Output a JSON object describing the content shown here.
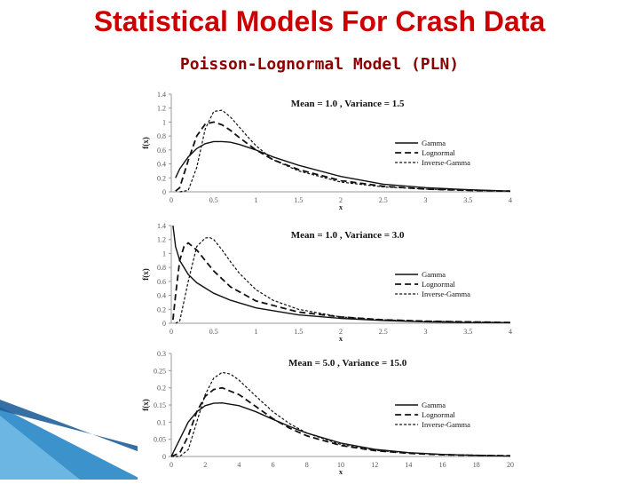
{
  "page": {
    "title": "Statistical Models For Crash Data",
    "subtitle": "Poisson-Lognormal Model (PLN)"
  },
  "colors": {
    "title": "#cc0000",
    "subtitle": "#8b0000",
    "decor": "#1a7fc1"
  },
  "chart_data": [
    {
      "type": "line",
      "title": "Mean = 1.0 , Variance = 1.5",
      "xlabel": "x",
      "ylabel": "f(x)",
      "xlim": [
        0,
        4
      ],
      "ylim": [
        0,
        1.4
      ],
      "xticks": [
        "0",
        "0.5",
        "1",
        "1.5",
        "2",
        "2.5",
        "3",
        "3.5",
        "4"
      ],
      "yticks": [
        "0",
        "0.2",
        "0.4",
        "0.6",
        "0.8",
        "1",
        "1.2",
        "1.4"
      ],
      "legend": "right",
      "series": [
        {
          "name": "Gamma",
          "style": "solid",
          "x": [
            0.05,
            0.1,
            0.2,
            0.3,
            0.4,
            0.5,
            0.6,
            0.7,
            0.8,
            1.0,
            1.2,
            1.5,
            2.0,
            2.5,
            3.0,
            3.5,
            4.0
          ],
          "values": [
            0.2,
            0.33,
            0.5,
            0.62,
            0.69,
            0.72,
            0.72,
            0.71,
            0.68,
            0.6,
            0.5,
            0.38,
            0.22,
            0.11,
            0.06,
            0.03,
            0.01
          ]
        },
        {
          "name": "Lognormal",
          "style": "dashed",
          "x": [
            0.05,
            0.1,
            0.2,
            0.3,
            0.4,
            0.5,
            0.6,
            0.7,
            0.8,
            1.0,
            1.2,
            1.5,
            2.0,
            2.5,
            3.0,
            3.5,
            4.0
          ],
          "values": [
            0.01,
            0.06,
            0.45,
            0.8,
            0.97,
            1.0,
            0.96,
            0.88,
            0.78,
            0.6,
            0.46,
            0.32,
            0.16,
            0.08,
            0.04,
            0.02,
            0.01
          ]
        },
        {
          "name": "Inverse-Gamma",
          "style": "dotted",
          "x": [
            0.1,
            0.2,
            0.3,
            0.4,
            0.5,
            0.6,
            0.7,
            0.8,
            0.9,
            1.0,
            1.2,
            1.5,
            2.0,
            2.5,
            3.0,
            3.5,
            4.0
          ],
          "values": [
            0.0,
            0.02,
            0.35,
            0.9,
            1.15,
            1.17,
            1.07,
            0.93,
            0.79,
            0.66,
            0.46,
            0.3,
            0.14,
            0.07,
            0.04,
            0.02,
            0.01
          ]
        }
      ]
    },
    {
      "type": "line",
      "title": "Mean = 1.0 , Variance = 3.0",
      "xlabel": "x",
      "ylabel": "f(x)",
      "xlim": [
        0,
        4
      ],
      "ylim": [
        0,
        1.4
      ],
      "xticks": [
        "0",
        "0.5",
        "1",
        "1.5",
        "2",
        "2.5",
        "3",
        "3.5",
        "4"
      ],
      "yticks": [
        "0",
        "0.2",
        "0.4",
        "0.6",
        "0.8",
        "1",
        "1.2",
        "1.4"
      ],
      "legend": "right",
      "series": [
        {
          "name": "Gamma",
          "style": "solid",
          "x": [
            0.02,
            0.05,
            0.1,
            0.2,
            0.3,
            0.5,
            0.7,
            1.0,
            1.5,
            2.0,
            2.5,
            3.0,
            3.5,
            4.0
          ],
          "values": [
            1.4,
            1.1,
            0.9,
            0.7,
            0.58,
            0.43,
            0.33,
            0.22,
            0.12,
            0.07,
            0.04,
            0.02,
            0.01,
            0.01
          ]
        },
        {
          "name": "Lognormal",
          "style": "dashed",
          "x": [
            0.02,
            0.05,
            0.1,
            0.15,
            0.2,
            0.3,
            0.4,
            0.5,
            0.7,
            1.0,
            1.5,
            2.0,
            2.5,
            3.0,
            3.5,
            4.0
          ],
          "values": [
            0.05,
            0.4,
            0.9,
            1.1,
            1.15,
            1.05,
            0.9,
            0.75,
            0.52,
            0.32,
            0.16,
            0.09,
            0.05,
            0.03,
            0.02,
            0.01
          ]
        },
        {
          "name": "Inverse-Gamma",
          "style": "dotted",
          "x": [
            0.05,
            0.1,
            0.2,
            0.3,
            0.4,
            0.45,
            0.5,
            0.6,
            0.7,
            0.8,
            1.0,
            1.2,
            1.5,
            2.0,
            2.5,
            3.0,
            3.5,
            4.0
          ],
          "values": [
            0.0,
            0.03,
            0.6,
            1.1,
            1.22,
            1.23,
            1.2,
            1.05,
            0.88,
            0.72,
            0.48,
            0.33,
            0.2,
            0.09,
            0.05,
            0.03,
            0.02,
            0.01
          ]
        }
      ]
    },
    {
      "type": "line",
      "title": "Mean = 5.0 , Variance = 15.0",
      "xlabel": "x",
      "ylabel": "f(x)",
      "xlim": [
        0,
        20
      ],
      "ylim": [
        0,
        0.3
      ],
      "xticks": [
        "0",
        "2",
        "4",
        "6",
        "8",
        "10",
        "12",
        "14",
        "16",
        "18",
        "20"
      ],
      "yticks": [
        "0",
        "0.05",
        "0.1",
        "0.15",
        "0.2",
        "0.25",
        "0.3"
      ],
      "legend": "right",
      "series": [
        {
          "name": "Gamma",
          "style": "solid",
          "x": [
            0,
            0.5,
            1,
            1.5,
            2,
            2.5,
            3,
            4,
            5,
            6,
            7,
            8,
            10,
            12,
            14,
            16,
            18,
            20
          ],
          "values": [
            0,
            0.05,
            0.1,
            0.13,
            0.148,
            0.155,
            0.156,
            0.148,
            0.13,
            0.108,
            0.087,
            0.068,
            0.039,
            0.021,
            0.011,
            0.006,
            0.003,
            0.001
          ]
        },
        {
          "name": "Lognormal",
          "style": "dashed",
          "x": [
            0,
            0.5,
            1,
            1.5,
            2,
            2.5,
            3,
            4,
            5,
            6,
            7,
            8,
            10,
            12,
            14,
            16,
            18,
            20
          ],
          "values": [
            0,
            0.01,
            0.06,
            0.13,
            0.175,
            0.195,
            0.2,
            0.18,
            0.145,
            0.11,
            0.082,
            0.06,
            0.032,
            0.017,
            0.009,
            0.005,
            0.003,
            0.002
          ]
        },
        {
          "name": "Inverse-Gamma",
          "style": "dotted",
          "x": [
            0,
            0.5,
            1,
            1.5,
            2,
            2.5,
            3,
            3.5,
            4,
            5,
            6,
            7,
            8,
            10,
            12,
            14,
            16,
            18,
            20
          ],
          "values": [
            0,
            0.0,
            0.02,
            0.1,
            0.18,
            0.228,
            0.245,
            0.24,
            0.222,
            0.175,
            0.13,
            0.095,
            0.068,
            0.035,
            0.018,
            0.01,
            0.006,
            0.004,
            0.002
          ]
        }
      ]
    }
  ]
}
